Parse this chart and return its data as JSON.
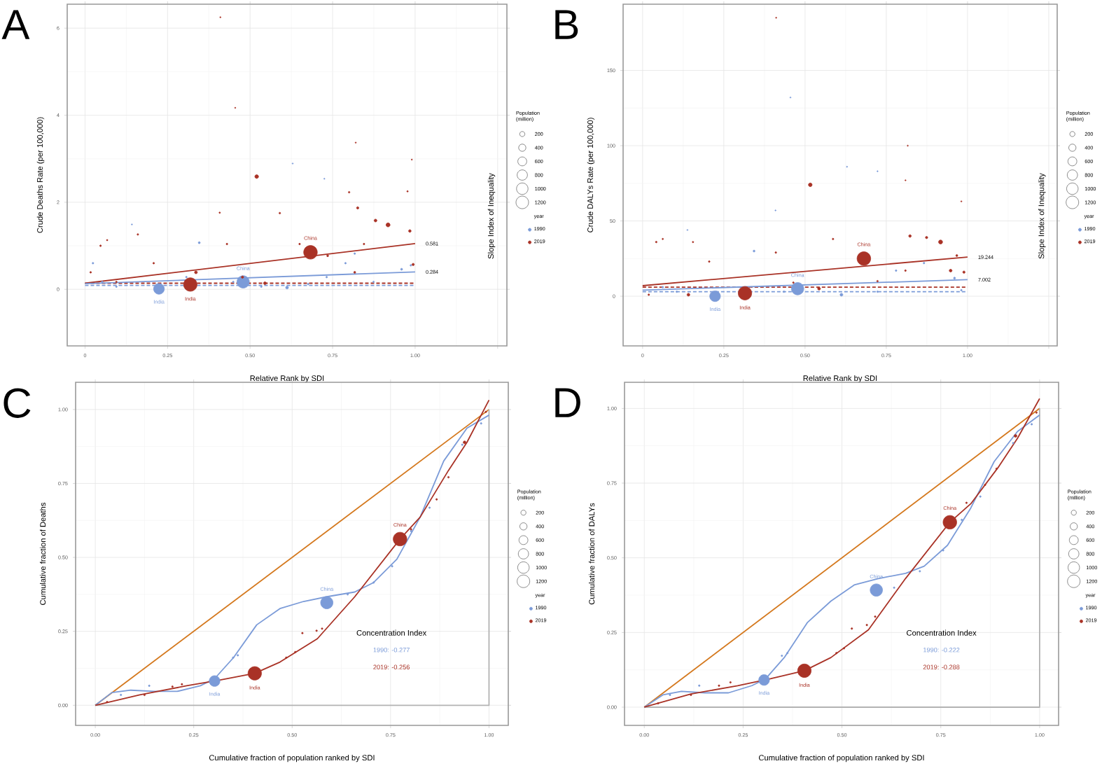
{
  "chart_data": [
    {
      "type": "bubble",
      "title": "A",
      "xlabel": "Relative Rank by SDI",
      "ylabel": "Crude Deaths Rate (per 100,000)",
      "y2label": "Slope Index of Inequality",
      "legend_title": "year",
      "legend": "right",
      "grid": true,
      "xlim": [
        -0.054,
        1.278
      ],
      "ylim": [
        -1.3,
        6.55
      ],
      "xticks": [
        0,
        0.25,
        {
          "value": 0.5,
          "label": "0.50"
        },
        0.75,
        {
          "value": 1,
          "label": "1.00"
        },
        {
          "value": 1.25,
          "label": null
        }
      ],
      "yticks": [
        0,
        2,
        4,
        6
      ],
      "size_legend": [
        200,
        400,
        600,
        800,
        1000,
        1200
      ],
      "annotations": [
        "Population (million)",
        "0.581",
        "0.284"
      ],
      "series": [
        {
          "type": "line",
          "color": "#a93226",
          "line_style": "dashed",
          "x": [
            0,
            1
          ],
          "values": [
            0.14,
            0.14
          ]
        },
        {
          "type": "line",
          "color": "#7b9bd8",
          "line_style": "dashed",
          "x": [
            0,
            1
          ],
          "values": [
            0.09,
            0.09
          ]
        },
        {
          "type": "line",
          "color": "#a93226",
          "line_style": "solid",
          "x": [
            0,
            1
          ],
          "values": [
            0.14,
            1.05
          ]
        },
        {
          "type": "line",
          "color": "#7b9bd8",
          "line_style": "solid",
          "x": [
            0,
            1
          ],
          "values": [
            0.13,
            0.4
          ]
        },
        {
          "name": "1990",
          "color": "#7b9bd8",
          "x": [
            0.479,
            0.224,
            0.346,
            0.142,
            0.629,
            0.725,
            0.612,
            0.789,
            0.959,
            0.987,
            0.024,
            0.052,
            0.732,
            0.874,
            0.449,
            0.307,
            0.817,
            0.095,
            0.534,
            0.676
          ],
          "values": [
            0.17,
            0.01,
            1.07,
            1.49,
            2.89,
            2.54,
            0.04,
            0.6,
            0.46,
            0.55,
            0.6,
            0.17,
            0.28,
            0.17,
            0.17,
            0.28,
            0.82,
            0.06,
            0.06,
            0.12
          ],
          "sizes": [
            1150,
            870,
            30,
            10,
            10,
            10,
            60,
            20,
            30,
            20,
            20,
            20,
            20,
            20,
            20,
            20,
            20,
            20,
            20,
            20
          ],
          "value_labels": [
            "China",
            "India",
            null,
            null,
            null,
            null,
            null,
            null,
            null,
            null,
            null,
            null,
            null,
            null,
            null,
            null,
            null,
            null,
            null,
            null
          ]
        },
        {
          "name": "2019",
          "color": "#a93226",
          "x": [
            0.683,
            0.319,
            0.41,
            0.455,
            0.52,
            0.82,
            0.99,
            0.918,
            0.826,
            0.88,
            0.984,
            0.16,
            0.408,
            0.59,
            0.047,
            0.067,
            0.8,
            0.977,
            0.43,
            0.545,
            0.817,
            0.994,
            0.017,
            0.208,
            0.65,
            0.735,
            0.845,
            0.095,
            0.336,
            0.477
          ],
          "values": [
            0.85,
            0.11,
            6.25,
            4.17,
            2.59,
            3.37,
            2.98,
            1.48,
            1.87,
            1.58,
            1.34,
            1.26,
            1.76,
            1.75,
            1.0,
            1.13,
            2.23,
            2.25,
            1.04,
            0.14,
            0.39,
            0.57,
            0.39,
            0.6,
            1.04,
            0.77,
            1.04,
            0.17,
            0.39,
            0.28
          ],
          "sizes": [
            1400,
            1370,
            10,
            10,
            100,
            10,
            10,
            120,
            40,
            60,
            50,
            20,
            15,
            20,
            20,
            15,
            20,
            15,
            20,
            60,
            30,
            40,
            20,
            20,
            20,
            30,
            20,
            20,
            60,
            40
          ],
          "value_labels": [
            "China",
            "India",
            null,
            null,
            null,
            null,
            null,
            null,
            null,
            null,
            null,
            null,
            null,
            null,
            null,
            null,
            null,
            null,
            null,
            null,
            null,
            null,
            null,
            null,
            null,
            null,
            null,
            null,
            null,
            null
          ]
        }
      ]
    },
    {
      "type": "bubble",
      "title": "B",
      "xlabel": "Relative Rank by SDI",
      "ylabel": "Crude DALYs Rate (per 100,000)",
      "y2label": "Slope Index of Inequality",
      "legend_title": "year",
      "legend": "right",
      "grid": true,
      "xlim": [
        -0.06,
        1.276
      ],
      "ylim": [
        -33,
        194
      ],
      "xticks": [
        0,
        0.25,
        {
          "value": 0.5,
          "label": "0.50"
        },
        0.75,
        {
          "value": 1,
          "label": "1.00"
        },
        {
          "value": 1.25,
          "label": null
        }
      ],
      "yticks": [
        0,
        50,
        100,
        150
      ],
      "size_legend": [
        200,
        400,
        600,
        800,
        1000,
        1200
      ],
      "annotations": [
        "Population (million)",
        "19.244",
        "7.002"
      ],
      "series": [
        {
          "type": "line",
          "color": "#a93226",
          "line_style": "dashed",
          "x": [
            0,
            1
          ],
          "values": [
            6,
            6
          ]
        },
        {
          "type": "line",
          "color": "#7b9bd8",
          "line_style": "dashed",
          "x": [
            0,
            1
          ],
          "values": [
            3,
            3
          ]
        },
        {
          "type": "line",
          "color": "#a93226",
          "line_style": "solid",
          "x": [
            0,
            1
          ],
          "values": [
            7,
            26
          ]
        },
        {
          "type": "line",
          "color": "#7b9bd8",
          "line_style": "solid",
          "x": [
            0,
            1
          ],
          "values": [
            4,
            11
          ]
        },
        {
          "name": "1990",
          "color": "#7b9bd8",
          "x": [
            0.477,
            0.223,
            0.343,
            0.138,
            0.409,
            0.455,
            0.629,
            0.723,
            0.612,
            0.78,
            0.866,
            0.96,
            0.981,
            0.062,
            0.105,
            0.723,
            0.435
          ],
          "values": [
            5,
            0,
            30,
            44,
            57,
            132,
            86,
            83,
            1,
            17,
            22,
            12,
            4,
            6,
            3,
            3,
            3
          ],
          "sizes": [
            1150,
            870,
            30,
            10,
            10,
            10,
            10,
            10,
            60,
            20,
            20,
            30,
            20,
            20,
            20,
            20,
            20
          ],
          "value_labels": [
            "China",
            "India",
            null,
            null,
            null,
            null,
            null,
            null,
            null,
            null,
            null,
            null,
            null,
            null,
            null,
            null,
            null
          ]
        },
        {
          "name": "2019",
          "color": "#a93226",
          "x": [
            0.681,
            0.315,
            0.411,
            0.516,
            0.816,
            0.809,
            0.981,
            0.917,
            0.874,
            0.823,
            0.586,
            0.062,
            0.042,
            0.155,
            0.41,
            0.948,
            0.989,
            0.543,
            0.141,
            0.019,
            0.205,
            0.967,
            0.809,
            0.723,
            0.464
          ],
          "values": [
            25,
            2,
            185,
            74,
            100,
            77,
            63,
            36,
            39,
            40,
            38,
            38,
            36,
            36,
            29,
            17,
            16,
            5,
            1,
            1,
            23,
            27,
            17,
            10,
            9
          ],
          "sizes": [
            1400,
            1370,
            10,
            100,
            10,
            10,
            10,
            120,
            40,
            50,
            20,
            15,
            20,
            15,
            20,
            60,
            40,
            60,
            60,
            20,
            20,
            30,
            20,
            20,
            20
          ],
          "value_labels": [
            "China",
            "India",
            null,
            null,
            null,
            null,
            null,
            null,
            null,
            null,
            null,
            null,
            null,
            null,
            null,
            null,
            null,
            null,
            null,
            null,
            null,
            null,
            null,
            null,
            null
          ]
        }
      ]
    },
    {
      "type": "bubble",
      "title": "C",
      "xlabel": "Cumulative fraction of population ranked by SDI",
      "ylabel": "Cumulative fraction of Deaths",
      "legend_title": "year",
      "legend": "right",
      "grid": true,
      "xlim": [
        -0.05,
        1.049
      ],
      "ylim": [
        -0.068,
        1.092
      ],
      "xticks": [
        {
          "value": 0,
          "label": "0.00"
        },
        0.25,
        {
          "value": 0.5,
          "label": "0.50"
        },
        0.75,
        {
          "value": 1,
          "label": "1.00"
        }
      ],
      "yticks": [
        {
          "value": 0,
          "label": "0.00"
        },
        0.25,
        {
          "value": 0.5,
          "label": "0.50"
        },
        0.75,
        {
          "value": 1,
          "label": "1.00"
        }
      ],
      "size_legend": [
        200,
        400,
        600,
        800,
        1000,
        1200
      ],
      "annotations": [
        "Population (million)",
        "Concentration Index",
        "1990: -0.277",
        "2019: -0.256"
      ],
      "series": [
        {
          "type": "line",
          "color": "#d4781d",
          "line_style": "solid",
          "x": [
            0,
            1
          ],
          "values": [
            0,
            1
          ]
        },
        {
          "type": "line",
          "color": "#b3b3b3",
          "line_style": "solid",
          "x": [
            0,
            1,
            1
          ],
          "values": [
            0,
            0,
            1
          ]
        },
        {
          "type": "line",
          "color": "#7b9bd8",
          "line_style": "solid",
          "x": [
            0,
            0.042,
            0.09,
            0.149,
            0.208,
            0.267,
            0.303,
            0.351,
            0.41,
            0.469,
            0.529,
            0.588,
            0.659,
            0.707,
            0.766,
            0.825,
            0.885,
            0.944,
            1.0
          ],
          "values": [
            0,
            0.043,
            0.051,
            0.047,
            0.047,
            0.066,
            0.09,
            0.161,
            0.272,
            0.327,
            0.351,
            0.367,
            0.383,
            0.415,
            0.494,
            0.636,
            0.826,
            0.937,
            0.981
          ]
        },
        {
          "type": "line",
          "color": "#a93226",
          "line_style": "solid",
          "x": [
            0,
            0.113,
            0.232,
            0.315,
            0.405,
            0.469,
            0.564,
            0.659,
            0.774,
            0.825,
            0.897,
            0.944,
            1.0
          ],
          "values": [
            0,
            0.035,
            0.066,
            0.085,
            0.108,
            0.146,
            0.225,
            0.367,
            0.562,
            0.636,
            0.794,
            0.889,
            1.032
          ]
        },
        {
          "name": "1990",
          "color": "#7b9bd8",
          "x": [
            0.588,
            0.303,
            0.065,
            0.137,
            0.35,
            0.362,
            0.641,
            0.707,
            0.754,
            0.802,
            0.849,
            0.932,
            0.98
          ],
          "values": [
            0.347,
            0.082,
            0.035,
            0.066,
            0.161,
            0.169,
            0.375,
            0.415,
            0.47,
            0.589,
            0.668,
            0.881,
            0.953
          ],
          "sizes": [
            1150,
            870,
            20,
            20,
            20,
            20,
            20,
            20,
            20,
            20,
            20,
            20,
            20
          ],
          "value_labels": [
            "China",
            "India",
            null,
            null,
            null,
            null,
            null,
            null,
            null,
            null,
            null,
            null,
            null
          ]
        },
        {
          "name": "2019",
          "color": "#a93226",
          "x": [
            0.774,
            0.405,
            0.03,
            0.125,
            0.196,
            0.22,
            0.485,
            0.508,
            0.526,
            0.562,
            0.576,
            0.802,
            0.867,
            0.897,
            0.938,
            0.992
          ],
          "values": [
            0.562,
            0.108,
            0.011,
            0.035,
            0.063,
            0.071,
            0.161,
            0.18,
            0.244,
            0.252,
            0.259,
            0.595,
            0.696,
            0.771,
            0.889,
            0.992
          ],
          "sizes": [
            1400,
            1370,
            20,
            20,
            20,
            20,
            20,
            20,
            20,
            20,
            20,
            20,
            20,
            20,
            60,
            20
          ],
          "value_labels": [
            "China",
            "India",
            null,
            null,
            null,
            null,
            null,
            null,
            null,
            null,
            null,
            null,
            null,
            null,
            null,
            null
          ]
        }
      ]
    },
    {
      "type": "bubble",
      "title": "D",
      "xlabel": "Cumulative fraction of population ranked by SDI",
      "ylabel": "Cumulative fraction of DALYs",
      "legend_title": "year",
      "legend": "right",
      "grid": true,
      "xlim": [
        -0.05,
        1.048
      ],
      "ylim": [
        -0.061,
        1.0875
      ],
      "xticks": [
        {
          "value": 0,
          "label": "0.00"
        },
        0.25,
        {
          "value": 0.5,
          "label": "0.50"
        },
        0.75,
        {
          "value": 1,
          "label": "1.00"
        }
      ],
      "yticks": [
        {
          "value": 0,
          "label": "0.00"
        },
        0.25,
        {
          "value": 0.5,
          "label": "0.50"
        },
        0.75,
        {
          "value": 1,
          "label": "1.00"
        }
      ],
      "size_legend": [
        200,
        400,
        600,
        800,
        1000,
        1200
      ],
      "annotations": [
        "Population (million)",
        "Concentration Index",
        "1990: -0.222",
        "2019: -0.288"
      ],
      "series": [
        {
          "type": "line",
          "color": "#d4781d",
          "line_style": "solid",
          "x": [
            0,
            1
          ],
          "values": [
            0,
            1
          ]
        },
        {
          "type": "line",
          "color": "#b3b3b3",
          "line_style": "solid",
          "x": [
            0,
            1,
            1
          ],
          "values": [
            0,
            0,
            1
          ]
        },
        {
          "type": "line",
          "color": "#7b9bd8",
          "line_style": "solid",
          "x": [
            0,
            0.047,
            0.094,
            0.153,
            0.213,
            0.272,
            0.307,
            0.354,
            0.413,
            0.472,
            0.531,
            0.59,
            0.661,
            0.708,
            0.767,
            0.826,
            0.885,
            0.944,
            1.0
          ],
          "values": [
            0,
            0.041,
            0.053,
            0.048,
            0.048,
            0.072,
            0.095,
            0.166,
            0.284,
            0.355,
            0.409,
            0.43,
            0.448,
            0.472,
            0.542,
            0.667,
            0.822,
            0.923,
            0.978
          ]
        },
        {
          "type": "line",
          "color": "#a93226",
          "line_style": "solid",
          "x": [
            0,
            0.118,
            0.236,
            0.319,
            0.405,
            0.472,
            0.567,
            0.661,
            0.773,
            0.826,
            0.897,
            0.944,
            1.0
          ],
          "values": [
            0,
            0.044,
            0.072,
            0.095,
            0.122,
            0.166,
            0.259,
            0.431,
            0.619,
            0.681,
            0.806,
            0.9,
            1.033
          ]
        },
        {
          "name": "1990",
          "color": "#7b9bd8",
          "x": [
            0.587,
            0.303,
            0.065,
            0.139,
            0.348,
            0.362,
            0.632,
            0.697,
            0.756,
            0.803,
            0.85,
            0.933,
            0.98
          ],
          "values": [
            0.392,
            0.091,
            0.041,
            0.072,
            0.172,
            0.181,
            0.4,
            0.455,
            0.525,
            0.627,
            0.705,
            0.884,
            0.947
          ],
          "sizes": [
            1150,
            870,
            20,
            20,
            20,
            20,
            20,
            20,
            20,
            20,
            20,
            20,
            20
          ],
          "value_labels": [
            "China",
            "India",
            null,
            null,
            null,
            null,
            null,
            null,
            null,
            null,
            null,
            null,
            null
          ]
        },
        {
          "name": "2019",
          "color": "#a93226",
          "x": [
            0.773,
            0.405,
            0.035,
            0.118,
            0.189,
            0.218,
            0.486,
            0.505,
            0.525,
            0.563,
            0.584,
            0.815,
            0.862,
            0.891,
            0.939,
            0.992
          ],
          "values": [
            0.619,
            0.122,
            0.013,
            0.041,
            0.072,
            0.083,
            0.181,
            0.197,
            0.263,
            0.275,
            0.303,
            0.684,
            0.744,
            0.798,
            0.908,
            0.986
          ],
          "sizes": [
            1400,
            1370,
            20,
            20,
            20,
            20,
            20,
            20,
            20,
            20,
            20,
            20,
            20,
            20,
            60,
            20
          ],
          "value_labels": [
            "China",
            "India",
            null,
            null,
            null,
            null,
            null,
            null,
            null,
            null,
            null,
            null,
            null,
            null,
            null,
            null
          ]
        }
      ]
    }
  ]
}
